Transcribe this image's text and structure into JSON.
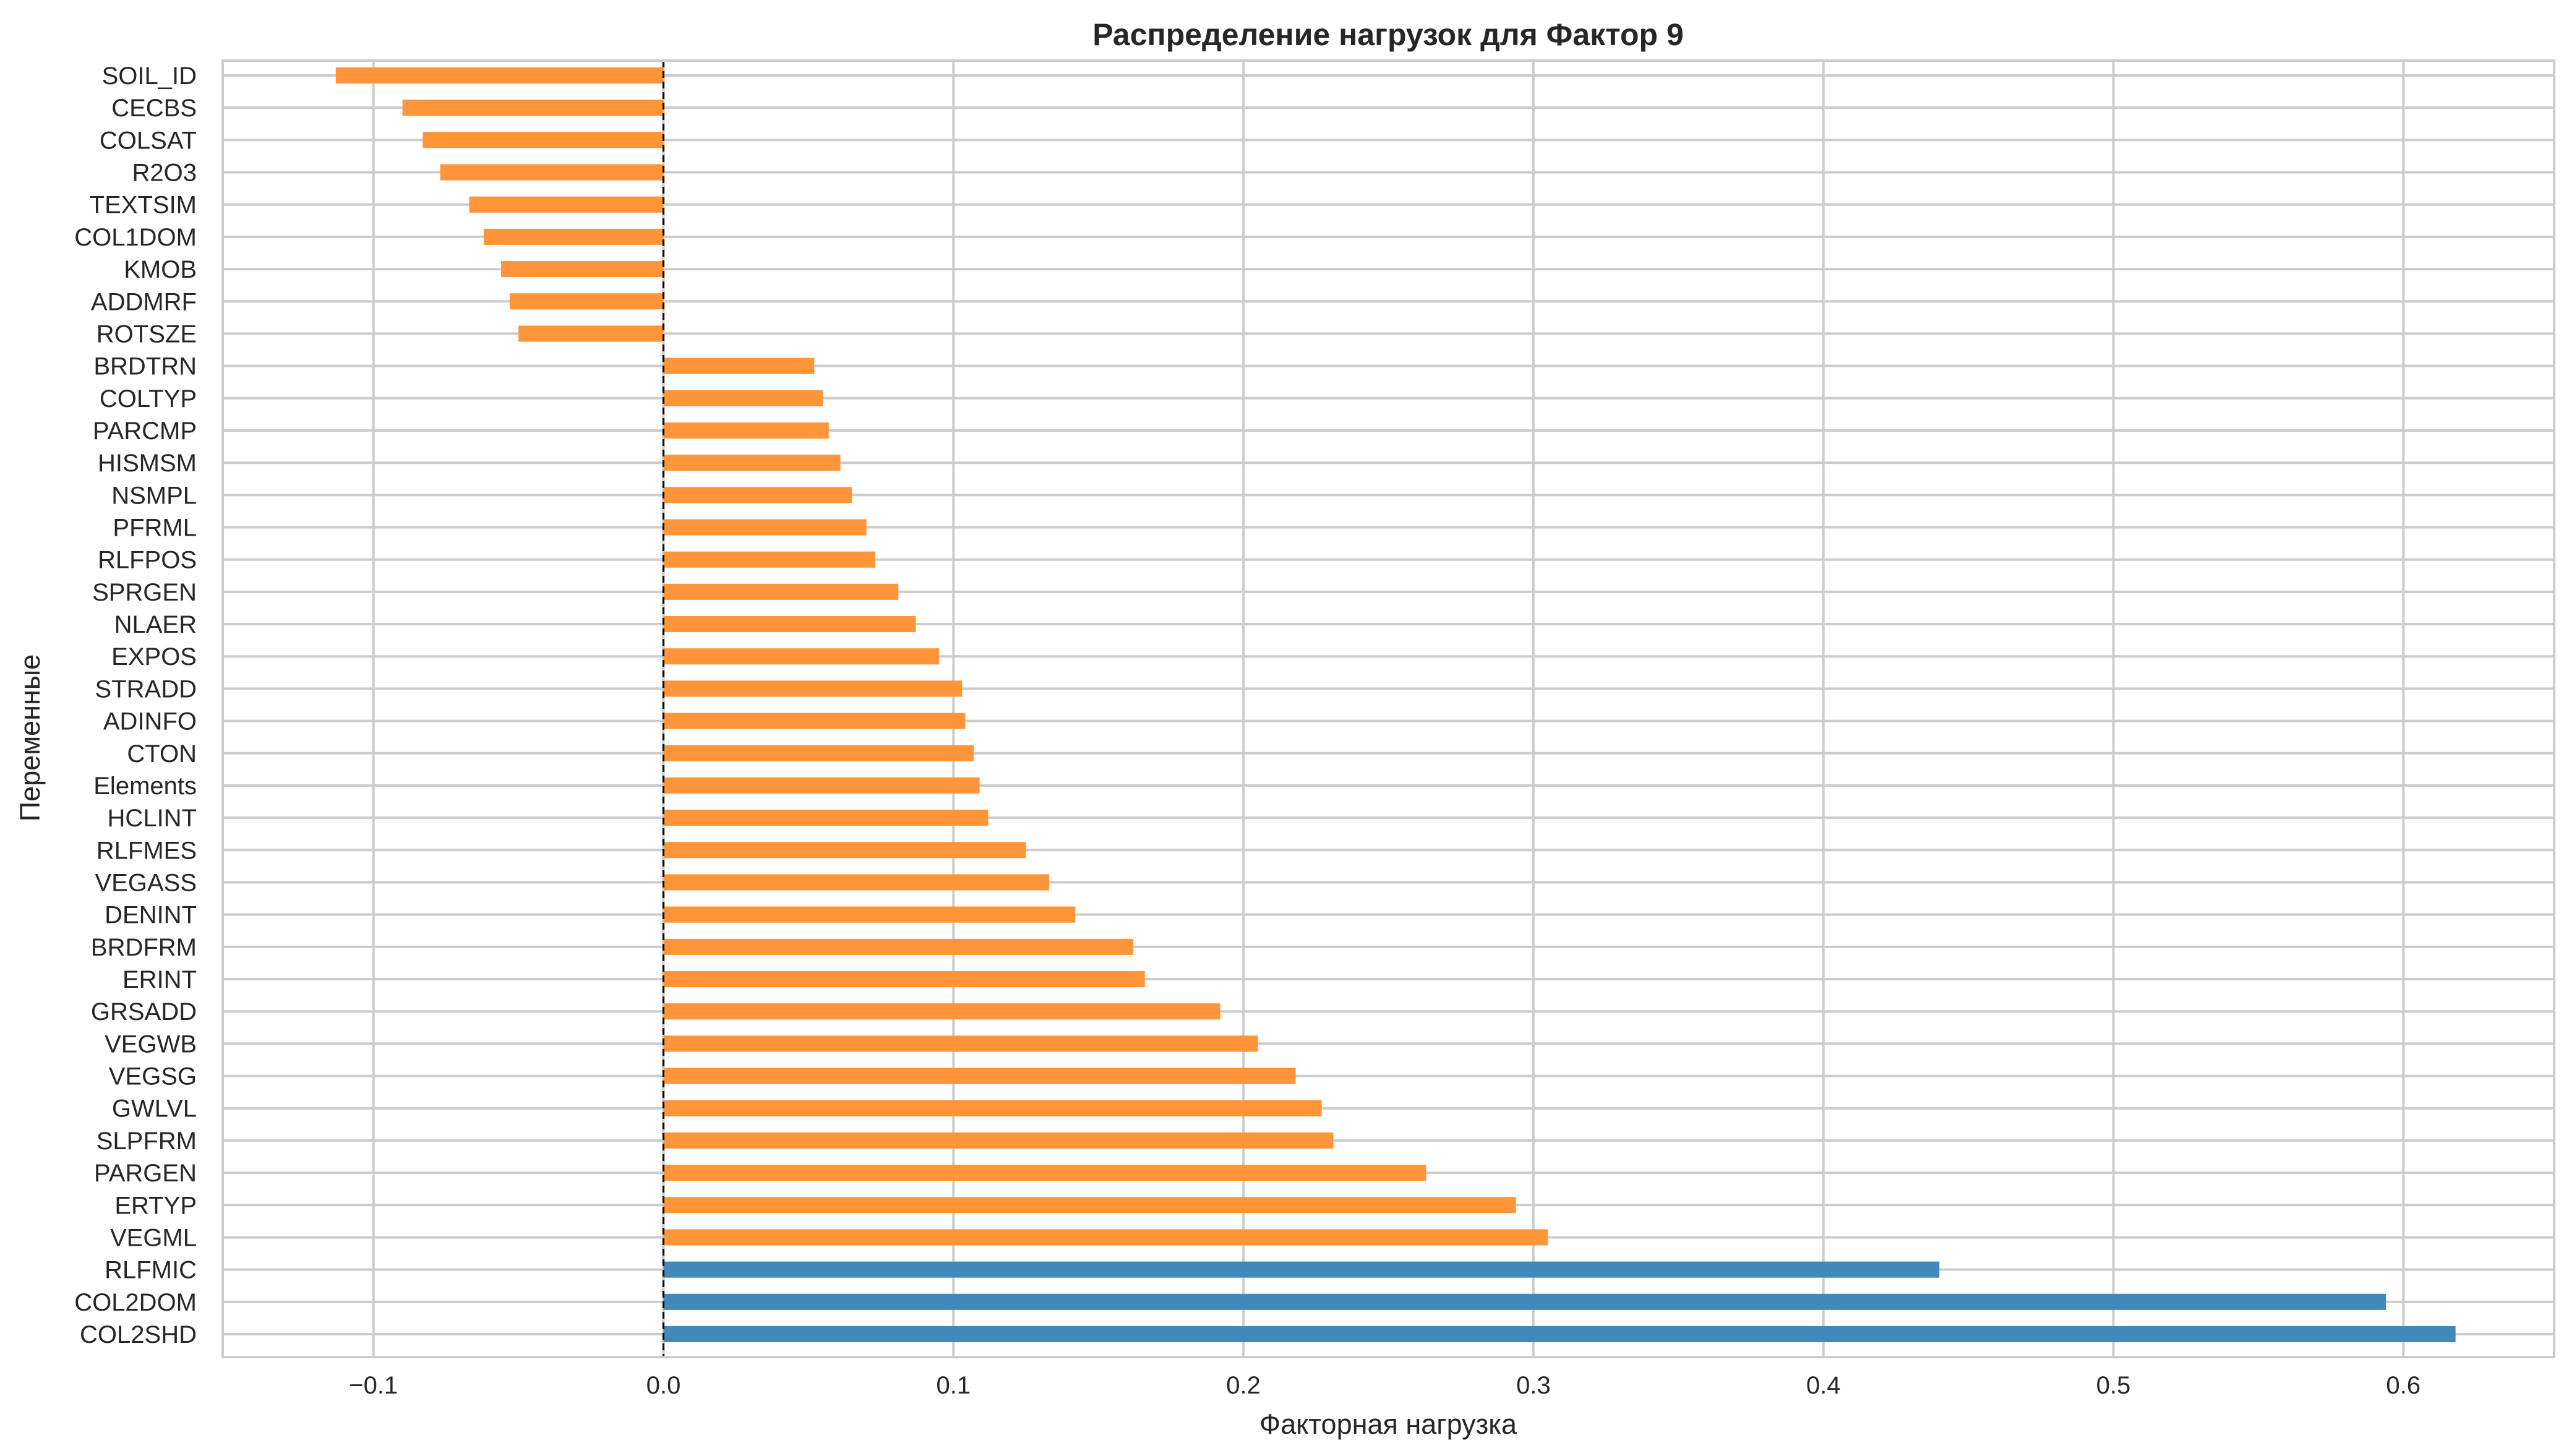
{
  "chart_data": {
    "type": "bar",
    "orientation": "horizontal",
    "title": "Распределение нагрузок для Фактор 9",
    "xlabel": "Факторная нагрузка",
    "ylabel": "Переменные",
    "xlim": [
      -0.152,
      0.652
    ],
    "xticks": [
      -0.1,
      0.0,
      0.1,
      0.2,
      0.3,
      0.4,
      0.5,
      0.6
    ],
    "xtick_labels": [
      "−0.1",
      "0.0",
      "0.1",
      "0.2",
      "0.3",
      "0.4",
      "0.5",
      "0.6"
    ],
    "grid": true,
    "zero_line": "dashed",
    "colors": {
      "highlight": "#4189bd",
      "default": "#ff9538",
      "grid": "#cccccc",
      "zero_line": "#000000"
    },
    "categories": [
      "SOIL_ID",
      "CECBS",
      "COLSAT",
      "R2O3",
      "TEXTSIM",
      "COL1DOM",
      "KMOB",
      "ADDMRF",
      "ROTSZE",
      "BRDTRN",
      "COLTYP",
      "PARCMP",
      "HISMSM",
      "NSMPL",
      "PFRML",
      "RLFPOS",
      "SPRGEN",
      "NLAER",
      "EXPOS",
      "STRADD",
      "ADINFO",
      "CTON",
      "Elements",
      "HCLINT",
      "RLFMES",
      "VEGASS",
      "DENINT",
      "BRDFRM",
      "ERINT",
      "GRSADD",
      "VEGWB",
      "VEGSG",
      "GWLVL",
      "SLPFRM",
      "PARGEN",
      "ERTYP",
      "VEGML",
      "RLFMIC",
      "COL2DOM",
      "COL2SHD"
    ],
    "values": [
      -0.113,
      -0.09,
      -0.083,
      -0.077,
      -0.067,
      -0.062,
      -0.056,
      -0.053,
      -0.05,
      0.052,
      0.055,
      0.057,
      0.061,
      0.065,
      0.07,
      0.073,
      0.081,
      0.087,
      0.095,
      0.103,
      0.104,
      0.107,
      0.109,
      0.112,
      0.125,
      0.133,
      0.142,
      0.162,
      0.166,
      0.192,
      0.205,
      0.218,
      0.227,
      0.231,
      0.263,
      0.294,
      0.305,
      0.44,
      0.594,
      0.618
    ],
    "highlighted": [
      "RLFMIC",
      "COL2DOM",
      "COL2SHD"
    ]
  }
}
